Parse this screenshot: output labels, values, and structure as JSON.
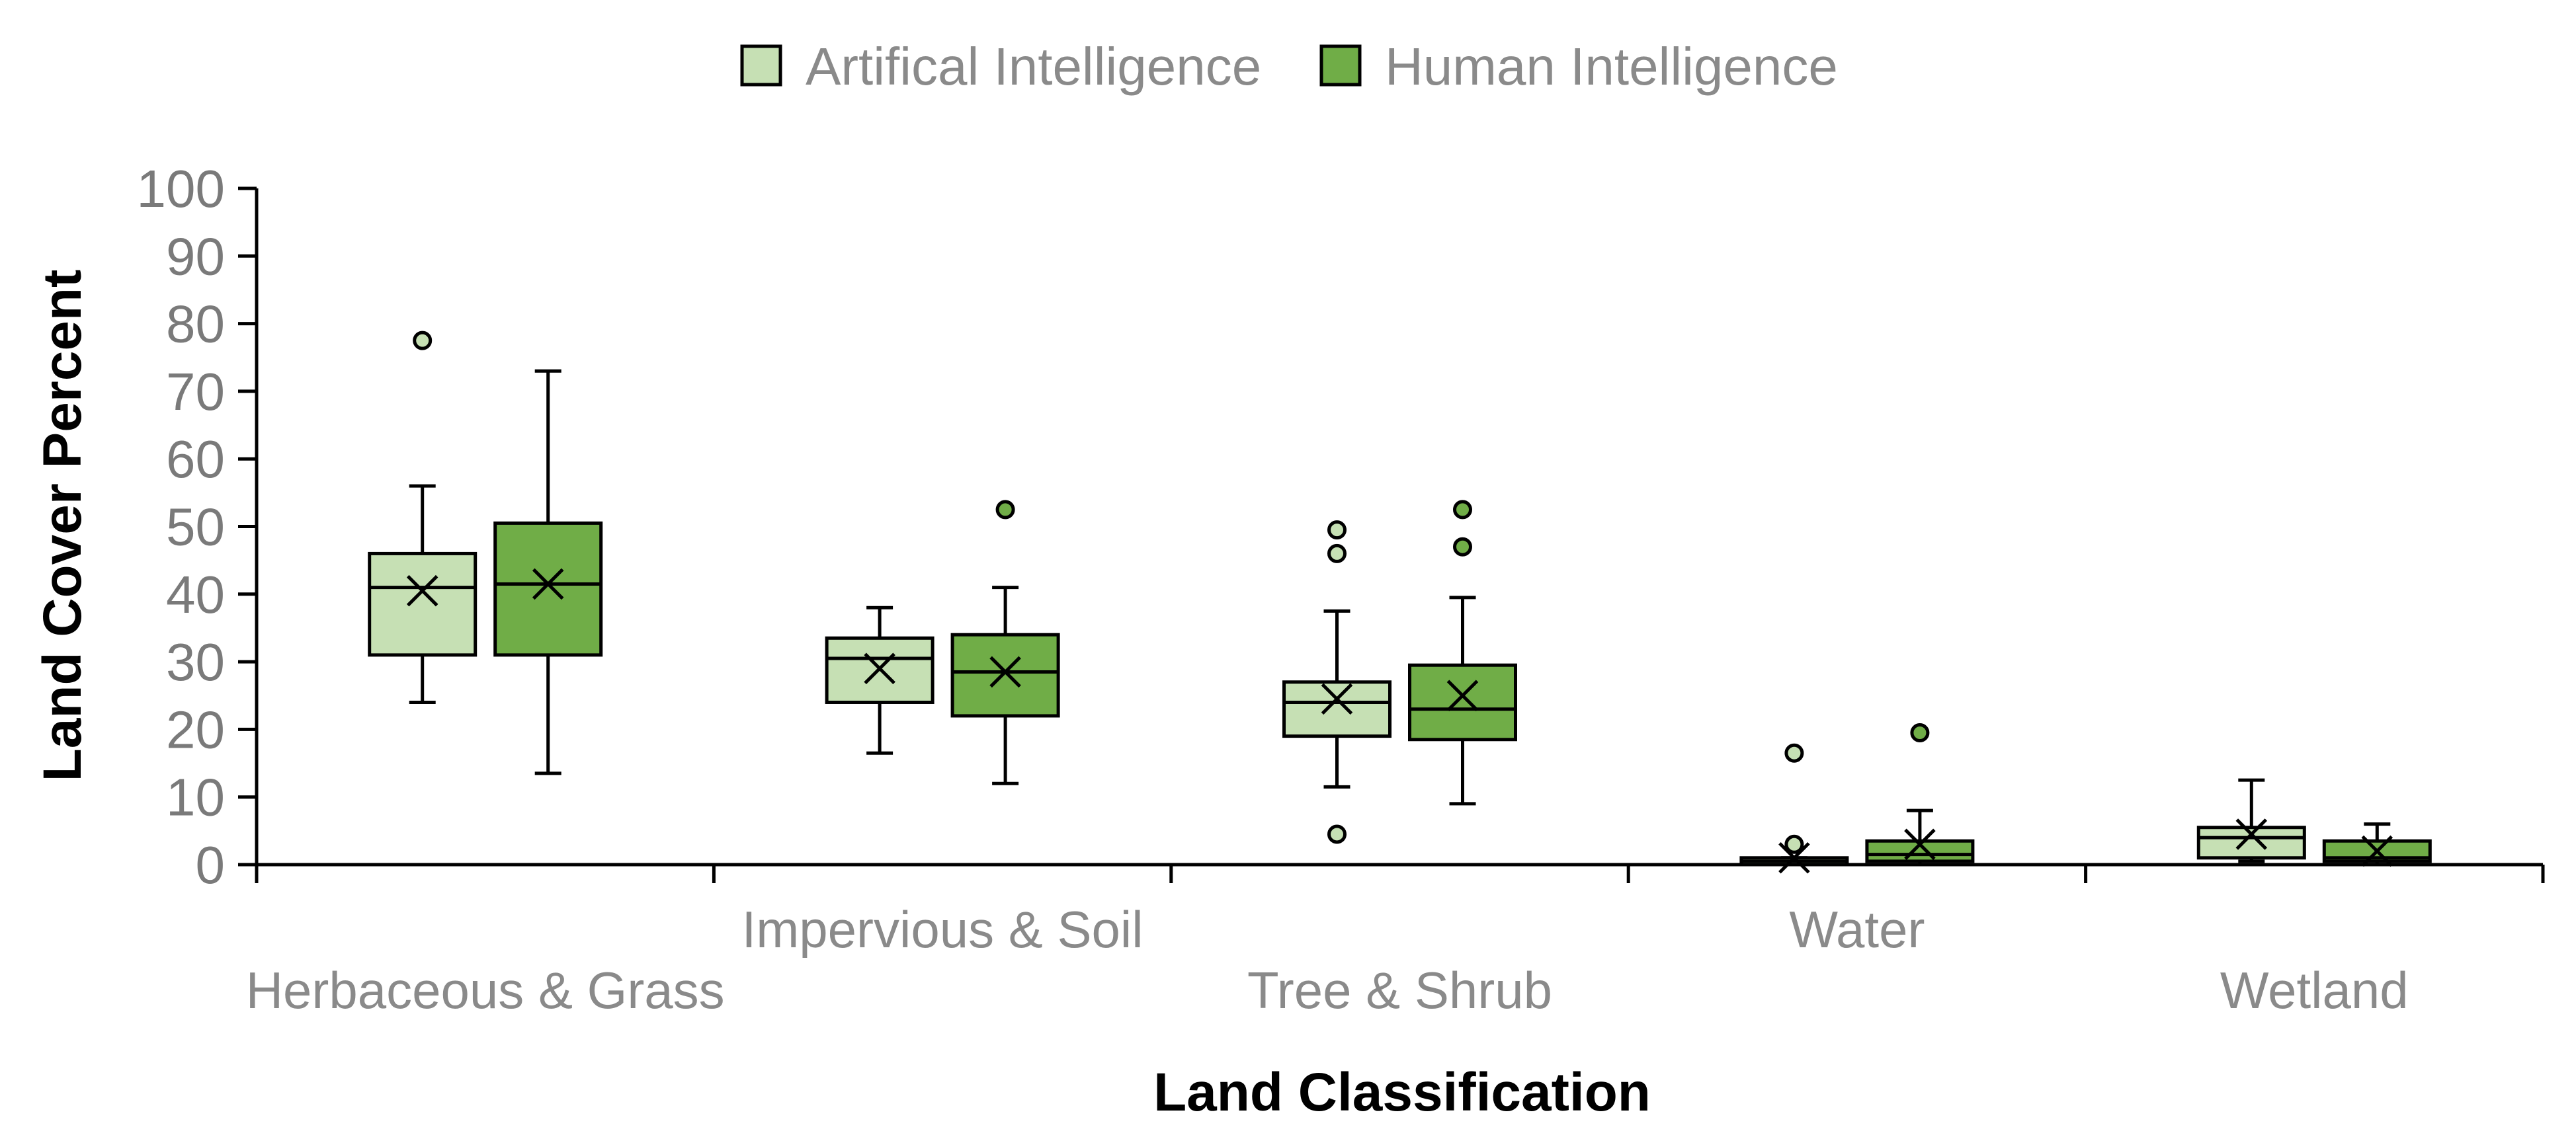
{
  "chart_data": {
    "type": "box",
    "title": "",
    "xlabel": "Land Classification",
    "ylabel": "Land Cover Percent",
    "ylim": [
      0,
      100
    ],
    "yticks": [
      "0",
      "10",
      "20",
      "30",
      "40",
      "50",
      "60",
      "70",
      "80",
      "90",
      "100"
    ],
    "grid": false,
    "legend_position": "top-center",
    "categories": [
      "Herbaceous & Grass",
      "Impervious & Soil",
      "Tree & Shrub",
      "Water",
      "Wetland"
    ],
    "series": [
      {
        "name": "Artifical Intelligence",
        "color": "#c6e0b4",
        "boxes": [
          {
            "whisker_low": 24,
            "q1": 31,
            "median": 41,
            "q3": 46,
            "whisker_high": 56,
            "mean": 40.5,
            "outliers": [
              77.5
            ]
          },
          {
            "whisker_low": 16.5,
            "q1": 24,
            "median": 30.5,
            "q3": 33.5,
            "whisker_high": 38,
            "mean": 29
          },
          {
            "whisker_low": 11.5,
            "q1": 19,
            "median": 24,
            "q3": 27,
            "whisker_high": 37.5,
            "mean": 24.5,
            "outliers": [
              4.5,
              46,
              49.5
            ]
          },
          {
            "whisker_low": 0,
            "q1": 0,
            "median": 0.5,
            "q3": 1,
            "whisker_high": 1,
            "mean": 1,
            "outliers": [
              3,
              16.5
            ]
          },
          {
            "whisker_low": 0.5,
            "q1": 1,
            "median": 4,
            "q3": 5.5,
            "whisker_high": 12.5,
            "mean": 4.5
          }
        ]
      },
      {
        "name": "Human Intelligence",
        "color": "#70ad47",
        "boxes": [
          {
            "whisker_low": 13.5,
            "q1": 31,
            "median": 41.5,
            "q3": 50.5,
            "whisker_high": 73,
            "mean": 41.5
          },
          {
            "whisker_low": 12,
            "q1": 22,
            "median": 28.5,
            "q3": 34,
            "whisker_high": 41,
            "mean": 28.5,
            "outliers": [
              52.5
            ]
          },
          {
            "whisker_low": 9,
            "q1": 18.5,
            "median": 23,
            "q3": 29.5,
            "whisker_high": 39.5,
            "mean": 25,
            "outliers": [
              47,
              52.5
            ]
          },
          {
            "whisker_low": 0,
            "q1": 0.5,
            "median": 1.5,
            "q3": 3.5,
            "whisker_high": 8,
            "mean": 3,
            "outliers": [
              19.5
            ]
          },
          {
            "whisker_low": 0,
            "q1": 0.5,
            "median": 1,
            "q3": 3.5,
            "whisker_high": 6,
            "mean": 2
          }
        ]
      }
    ]
  }
}
